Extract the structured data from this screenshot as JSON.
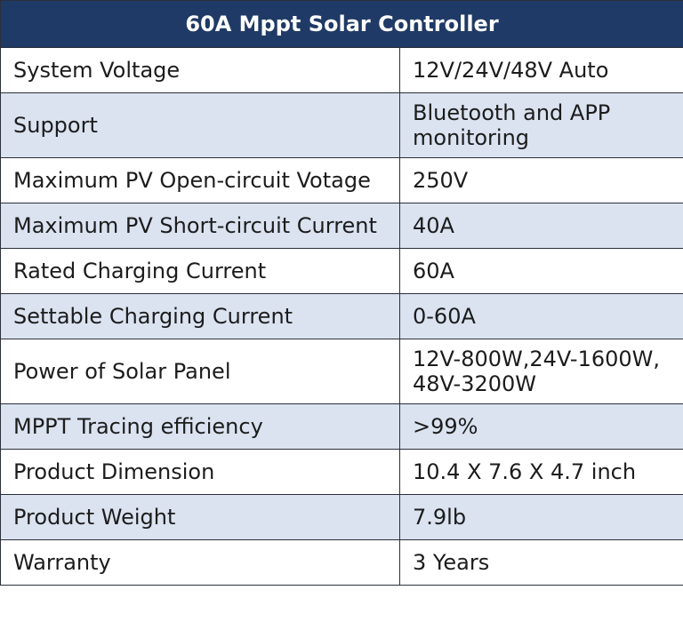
{
  "table": {
    "title": "60A Mppt Solar Controller",
    "rows": [
      {
        "label": "System Voltage",
        "value": "12V/24V/48V Auto"
      },
      {
        "label": "Support",
        "value": "Bluetooth and APP monitoring"
      },
      {
        "label": "Maximum PV Open-circuit Votage",
        "value": "250V"
      },
      {
        "label": "Maximum PV Short-circuit Current",
        "value": "40A"
      },
      {
        "label": "Rated Charging Current",
        "value": "60A"
      },
      {
        "label": "Settable Charging Current",
        "value": "0-60A"
      },
      {
        "label": "Power of Solar Panel",
        "value": "12V-800W,24V-1600W, 48V-3200W"
      },
      {
        "label": "MPPT Tracing efficiency",
        "value": ">99%"
      },
      {
        "label": "Product Dimension",
        "value": "10.4 X 7.6 X 4.7 inch"
      },
      {
        "label": "Product Weight",
        "value": "7.9lb"
      },
      {
        "label": "Warranty",
        "value": "3 Years"
      }
    ]
  },
  "colors": {
    "header_bg": "#1f3a66",
    "header_text": "#ffffff",
    "row_alt_bg": "#dbe3f1",
    "row_bg": "#ffffff",
    "border": "#2a2f3a"
  }
}
